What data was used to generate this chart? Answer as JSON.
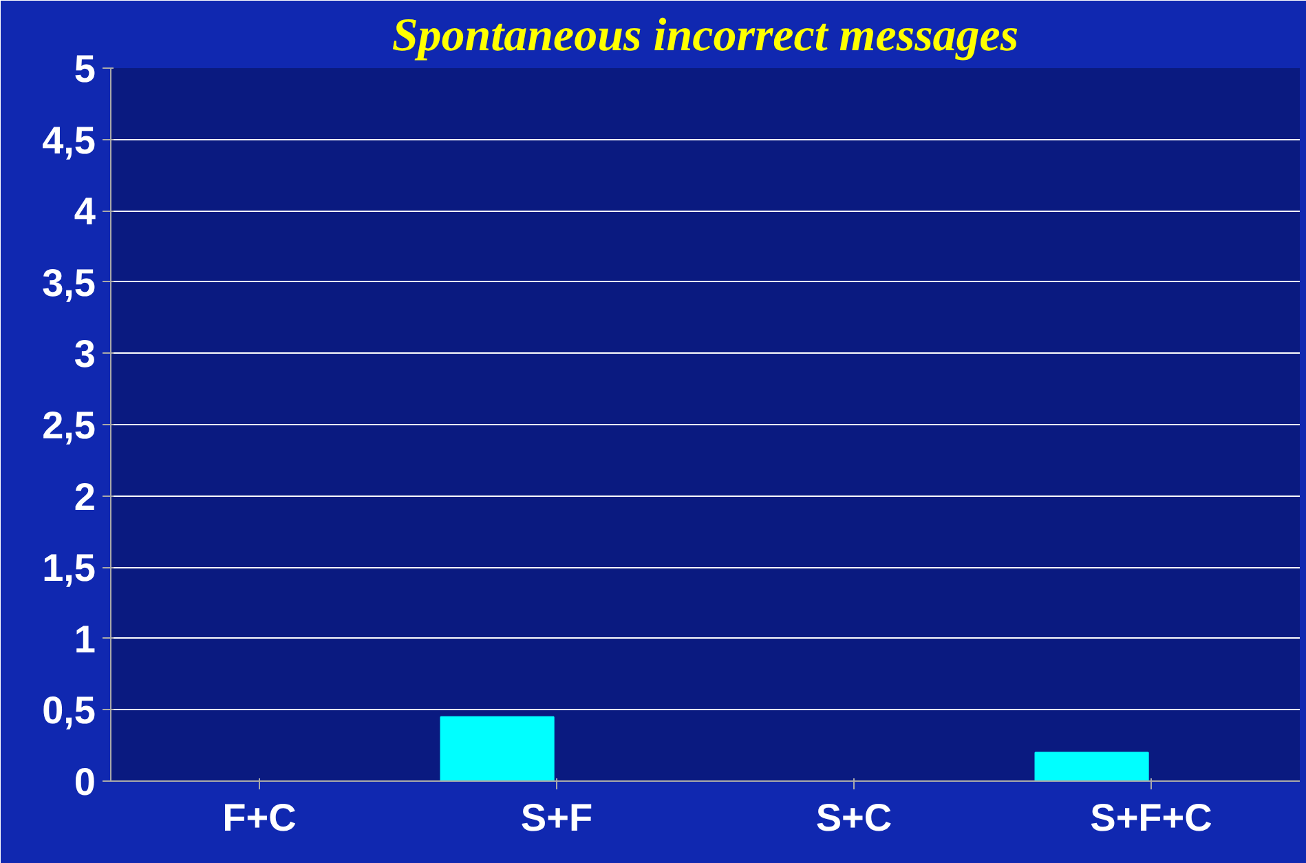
{
  "chart_data": {
    "type": "bar",
    "title": "Spontaneous incorrect messages",
    "categories": [
      "F+C",
      "S+F",
      "S+C",
      "S+F+C"
    ],
    "series": [
      {
        "color": "#00ffff",
        "values": [
          0,
          0.45,
          0,
          0.2
        ]
      },
      {
        "color": "#2a3fc0",
        "values": [
          0,
          0,
          0,
          0
        ]
      }
    ],
    "ylim": [
      0,
      5
    ],
    "yticks": [
      0,
      {
        "value": 0.5,
        "label": "0,5"
      },
      1,
      {
        "value": 1.5,
        "label": "1,5"
      },
      2,
      {
        "value": 2.5,
        "label": "2,5"
      },
      3,
      {
        "value": 3.5,
        "label": "3,5"
      },
      4,
      {
        "value": 4.5,
        "label": "4,5"
      },
      5
    ],
    "grid": "y"
  }
}
